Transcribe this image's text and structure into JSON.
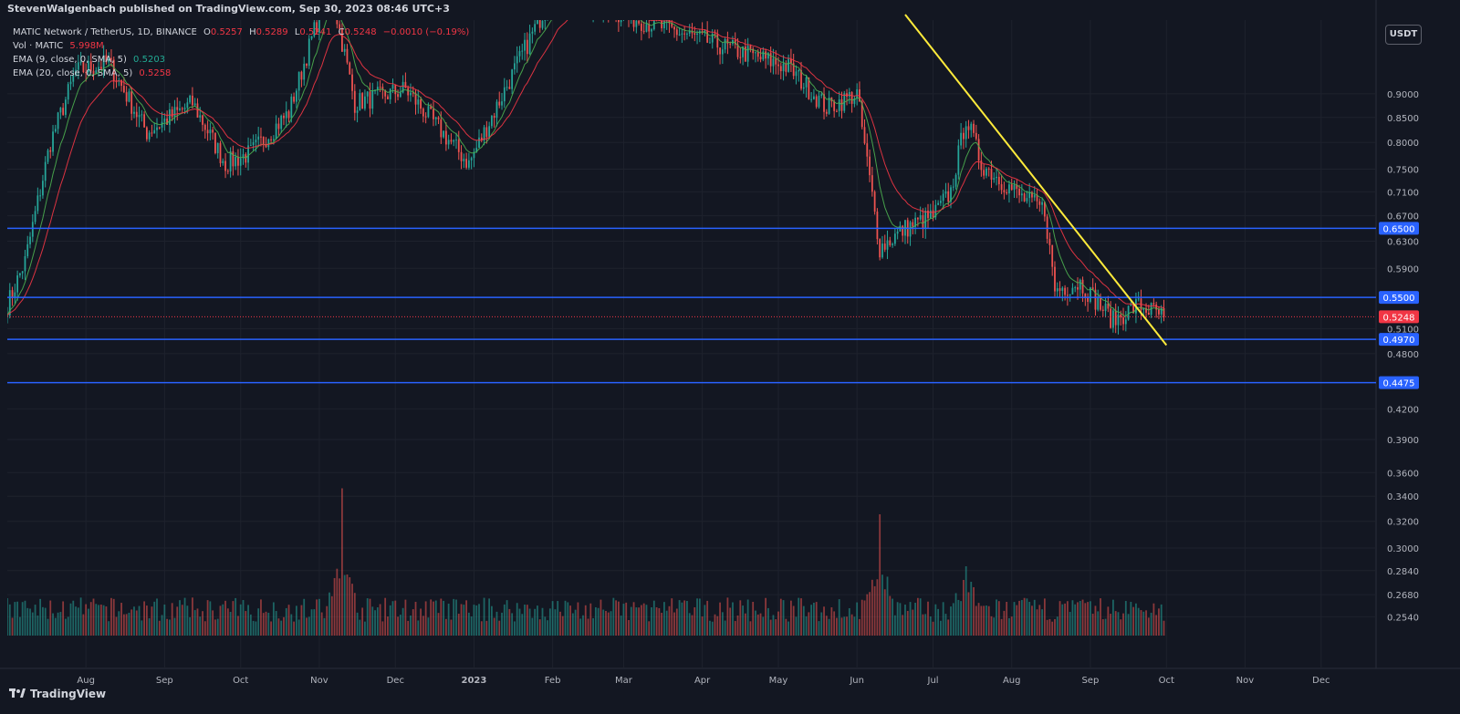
{
  "header": {
    "publisher": "StevenWalgenbach published on TradingView.com, Sep 30, 2023 08:46 UTC+3"
  },
  "legend": {
    "symbol": "MATIC Network / TetherUS, 1D, BINANCE",
    "o_label": "O",
    "o_value": "0.5257",
    "h_label": "H",
    "h_value": "0.5289",
    "l_label": "L",
    "l_value": "0.5241",
    "c_label": "C",
    "c_value": "0.5248",
    "change": "−0.0010 (−0.19%)",
    "vol_label": "Vol · MATIC",
    "vol_value": "5.998M",
    "ema9_label": "EMA (9, close, 0, SMA, 5)",
    "ema9_value": "0.5203",
    "ema20_label": "EMA (20, close, 0, SMA, 5)",
    "ema20_value": "0.5258"
  },
  "price_axis": {
    "unit": "USDT",
    "ticks": [
      "0.9000",
      "0.8500",
      "0.8000",
      "0.7500",
      "0.7100",
      "0.6700",
      "0.6300",
      "0.5900",
      "0.5100",
      "0.4800",
      "0.4200",
      "0.3900",
      "0.3600",
      "0.3400",
      "0.3200",
      "0.3000",
      "0.2840",
      "0.2680",
      "0.2540"
    ]
  },
  "time_axis": {
    "labels": [
      "Aug",
      "Sep",
      "Oct",
      "Nov",
      "Dec",
      "2023",
      "Feb",
      "Mar",
      "Apr",
      "May",
      "Jun",
      "Jul",
      "Aug",
      "Sep",
      "Oct",
      "Nov",
      "Dec"
    ]
  },
  "brand": {
    "name": "TradingView"
  },
  "colors": {
    "background": "#131722",
    "up": "#26a69a",
    "down": "#ef5350",
    "ema9": "#4caf50",
    "ema20": "#f23645",
    "level": "#2962ff",
    "trendline": "#ffeb3b",
    "last_price": "#f23645"
  },
  "chart_data": {
    "type": "candlestick",
    "title": "MATIC Network / TetherUS, 1D, BINANCE",
    "xlabel": "",
    "ylabel": "USDT",
    "y_scale": "log",
    "x_range": [
      "2022-07-01",
      "2023-12-31"
    ],
    "last_price": 0.5248,
    "horizontal_levels": [
      {
        "price": 0.65,
        "label": "0.6500"
      },
      {
        "price": 0.55,
        "label": "0.5500"
      },
      {
        "price": 0.497,
        "label": "0.4970"
      },
      {
        "price": 0.4475,
        "label": "0.4475"
      }
    ],
    "trendline": {
      "start": {
        "date": "2023-06-20",
        "price": 1.09
      },
      "end": {
        "date": "2023-10-01",
        "price": 0.49
      }
    },
    "close_path": [
      {
        "date": "2022-07-01",
        "close": 0.54
      },
      {
        "date": "2022-07-08",
        "close": 0.6
      },
      {
        "date": "2022-07-18",
        "close": 0.8
      },
      {
        "date": "2022-07-28",
        "close": 0.95
      },
      {
        "date": "2022-08-10",
        "close": 0.97
      },
      {
        "date": "2022-08-25",
        "close": 0.82
      },
      {
        "date": "2022-09-12",
        "close": 0.88
      },
      {
        "date": "2022-09-25",
        "close": 0.76
      },
      {
        "date": "2022-10-05",
        "close": 0.78
      },
      {
        "date": "2022-10-20",
        "close": 0.86
      },
      {
        "date": "2022-11-05",
        "close": 1.18
      },
      {
        "date": "2022-11-15",
        "close": 0.88
      },
      {
        "date": "2022-12-05",
        "close": 0.91
      },
      {
        "date": "2022-12-30",
        "close": 0.76
      },
      {
        "date": "2023-01-15",
        "close": 0.93
      },
      {
        "date": "2023-02-01",
        "close": 1.15
      },
      {
        "date": "2023-05-05",
        "close": 0.96
      },
      {
        "date": "2023-05-20",
        "close": 0.87
      },
      {
        "date": "2023-06-01",
        "close": 0.9
      },
      {
        "date": "2023-06-10",
        "close": 0.62
      },
      {
        "date": "2023-06-20",
        "close": 0.65
      },
      {
        "date": "2023-07-01",
        "close": 0.67
      },
      {
        "date": "2023-07-08",
        "close": 0.71
      },
      {
        "date": "2023-07-14",
        "close": 0.85
      },
      {
        "date": "2023-07-20",
        "close": 0.76
      },
      {
        "date": "2023-08-05",
        "close": 0.7
      },
      {
        "date": "2023-08-14",
        "close": 0.68
      },
      {
        "date": "2023-08-18",
        "close": 0.56
      },
      {
        "date": "2023-08-28",
        "close": 0.57
      },
      {
        "date": "2023-09-10",
        "close": 0.52
      },
      {
        "date": "2023-09-20",
        "close": 0.54
      },
      {
        "date": "2023-09-30",
        "close": 0.5248
      }
    ],
    "volume_peaks_m": [
      {
        "date": "2022-11-10",
        "value": 85
      },
      {
        "date": "2023-06-10",
        "value": 70
      },
      {
        "date": "2023-07-14",
        "value": 40
      }
    ]
  }
}
